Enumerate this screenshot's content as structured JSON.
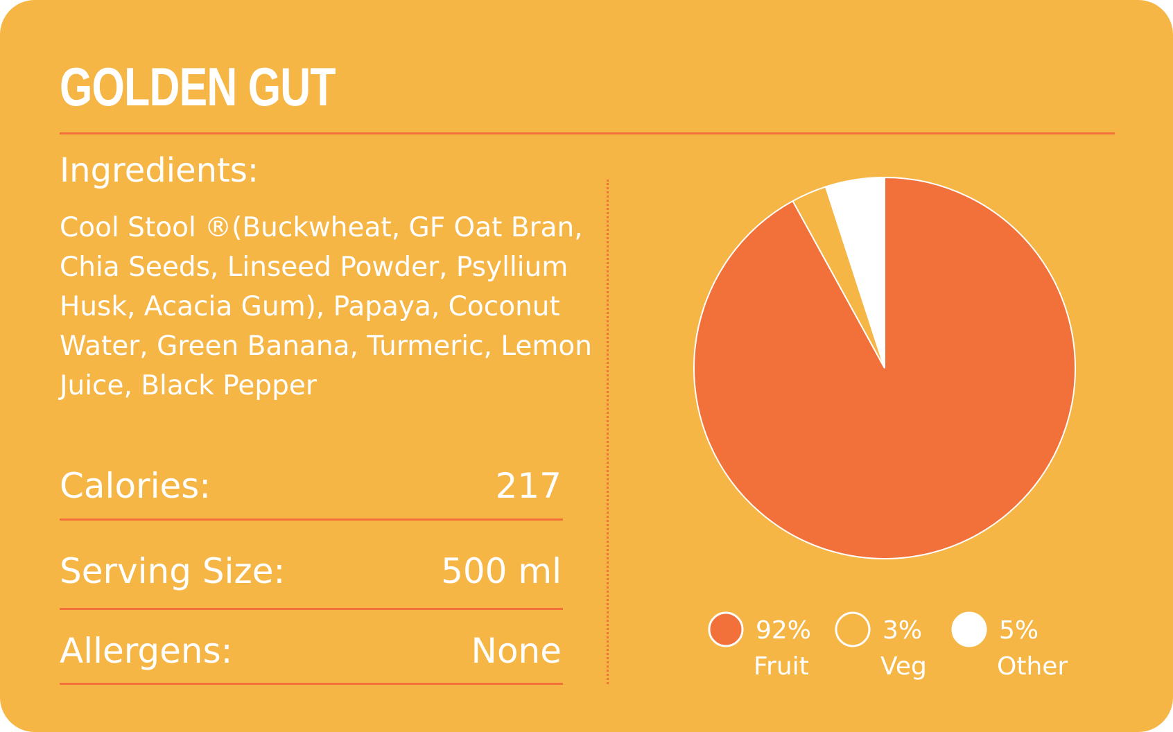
{
  "header": {
    "title": "GOLDEN GUT"
  },
  "ingredients": {
    "label": "Ingredients:",
    "text": "Cool Stool ®(Buckwheat, GF Oat Bran, Chia Seeds, Linseed Powder, Psyllium Husk, Acacia Gum), Papaya, Coconut Water, Green Banana, Turmeric, Lemon Juice, Black Pepper"
  },
  "facts": [
    {
      "label": "Calories:",
      "value": "217"
    },
    {
      "label": "Serving Size:",
      "value": "500 ml"
    },
    {
      "label": "Allergens:",
      "value": "None"
    }
  ],
  "chart_data": {
    "type": "pie",
    "categories": [
      "Fruit",
      "Veg",
      "Other"
    ],
    "values": [
      92,
      3,
      5
    ],
    "value_labels": [
      "92%",
      "3%",
      "5%"
    ],
    "colors": [
      "#f2703a",
      "#f6b646",
      "#ffffff"
    ]
  }
}
